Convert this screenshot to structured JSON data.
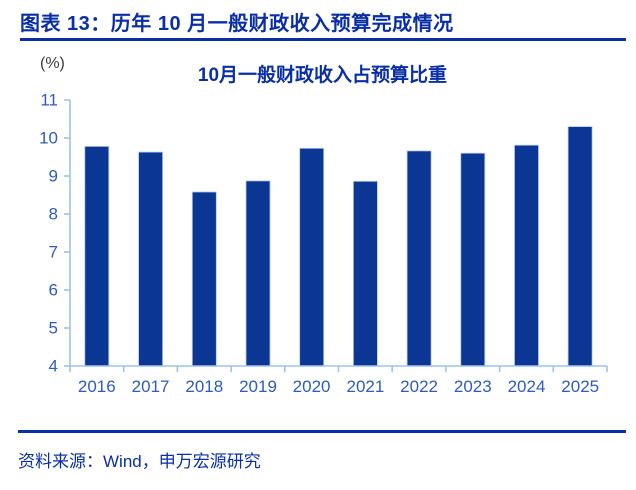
{
  "header": {
    "title": "图表 13：历年 10 月一般财政收入预算完成情况"
  },
  "footer": {
    "source": "资料来源：Wind，申万宏源研究"
  },
  "chart_data": {
    "type": "bar",
    "title": "10月一般财政收入占预算比重",
    "unit_label": "(%)",
    "categories": [
      "2016",
      "2017",
      "2018",
      "2019",
      "2020",
      "2021",
      "2022",
      "2023",
      "2024",
      "2025"
    ],
    "values": [
      9.78,
      9.63,
      8.58,
      8.87,
      9.73,
      8.86,
      9.66,
      9.6,
      9.81,
      10.3
    ],
    "ylim": [
      4,
      11
    ],
    "ytick_step": 1,
    "grid": false,
    "legend": "none",
    "xlabel": "",
    "ylabel": "(%)"
  },
  "colors": {
    "header_text": "#0A2EA6",
    "rule": "#0A2EA6",
    "chart_title": "#0A2EA6",
    "unit_label": "#3D3D3D",
    "bar": "#0B3694",
    "bar_border": "#AFC9EC",
    "axis": "#9DC3E6",
    "tick_label": "#2E5BBE",
    "footer_text": "#0A2EA6",
    "background": "#FFFFFF"
  }
}
